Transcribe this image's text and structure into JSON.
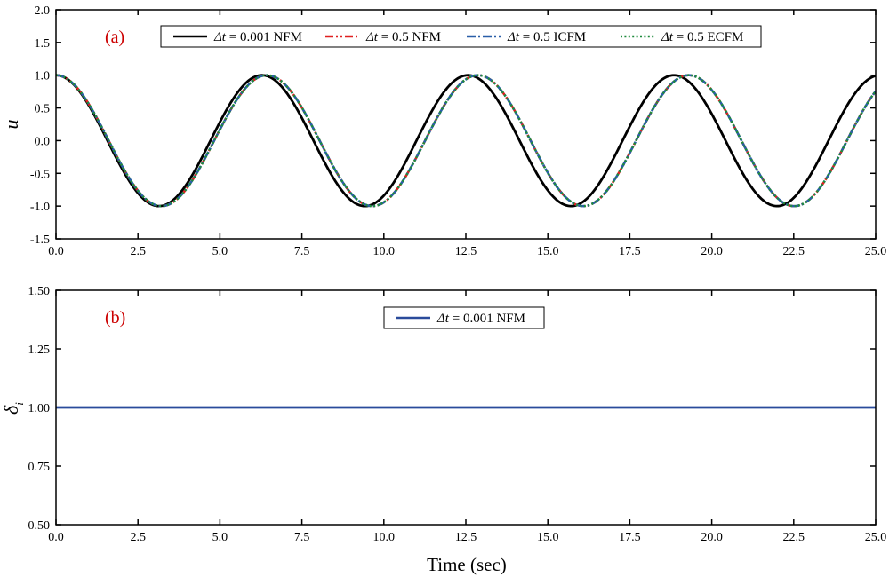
{
  "xlabel": "Time  (sec)",
  "chart_data": [
    {
      "type": "line",
      "panel_label": "(a)",
      "ylabel": "u",
      "xlim": [
        0,
        25
      ],
      "ylim": [
        -1.5,
        2.0
      ],
      "x_ticks": [
        0,
        2.5,
        5,
        7.5,
        10,
        12.5,
        15,
        17.5,
        20,
        22.5,
        25
      ],
      "x_tick_labels": [
        "0.0",
        "2.5",
        "5.0",
        "7.5",
        "10.0",
        "12.5",
        "15.0",
        "17.5",
        "20.0",
        "22.5",
        "25.0"
      ],
      "y_ticks": [
        -1.5,
        -1.0,
        -0.5,
        0.0,
        0.5,
        1.0,
        1.5,
        2.0
      ],
      "y_tick_labels": [
        "-1.5",
        "-1.0",
        "-0.5",
        "0.0",
        "0.5",
        "1.0",
        "1.5",
        "2.0"
      ],
      "grid": false,
      "legend_position": "top",
      "series": [
        {
          "name": "Δt = 0.001 NFM",
          "name_italic": "Δt",
          "name_rest": " = 0.001 NFM",
          "color": "#000000",
          "style": "solid",
          "function": "cos",
          "omega": 1.0,
          "x": [
            0,
            3.14,
            6.28,
            9.42,
            12.57,
            15.71,
            18.85,
            21.99,
            25.0
          ],
          "y": [
            1,
            -1,
            1,
            -1,
            1,
            -1,
            1,
            -1,
            0.99
          ]
        },
        {
          "name": "Δt = 0.5 NFM",
          "name_italic": "Δt",
          "name_rest": " = 0.5 NFM",
          "color": "#e02020",
          "style": "dashdotdot",
          "function": "cos",
          "omega": 0.9767,
          "x": [
            0,
            3.22,
            6.43,
            9.65,
            12.87,
            16.08,
            19.3,
            22.52,
            25.0
          ],
          "y": [
            1,
            -1,
            1,
            -1,
            1,
            -1,
            1,
            -1,
            0.77
          ]
        },
        {
          "name": "Δt = 0.5 ICFM",
          "name_italic": "Δt",
          "name_rest": " = 0.5 ICFM",
          "color": "#2a5fa8",
          "style": "dashdot",
          "function": "cos",
          "omega": 0.9767,
          "x": [
            0,
            3.22,
            6.43,
            9.65,
            12.87,
            16.08,
            19.3,
            22.52,
            25.0
          ],
          "y": [
            1,
            -1,
            1,
            -1,
            1,
            -1,
            1,
            -1,
            0.77
          ]
        },
        {
          "name": "Δt = 0.5 ECFM",
          "name_italic": "Δt",
          "name_rest": " = 0.5 ECFM",
          "color": "#1e8a3c",
          "style": "dotted",
          "function": "cos",
          "omega": 0.9767,
          "x": [
            0,
            3.22,
            6.43,
            9.65,
            12.87,
            16.08,
            19.3,
            22.52,
            25.0
          ],
          "y": [
            1,
            -1,
            1,
            -1,
            1,
            -1,
            1,
            -1,
            0.77
          ]
        }
      ]
    },
    {
      "type": "line",
      "panel_label": "(b)",
      "ylabel": "δ",
      "ylabel_subscript": "i",
      "xlim": [
        0,
        25
      ],
      "ylim": [
        0.5,
        1.5
      ],
      "x_ticks": [
        0,
        2.5,
        5,
        7.5,
        10,
        12.5,
        15,
        17.5,
        20,
        22.5,
        25
      ],
      "x_tick_labels": [
        "0.0",
        "2.5",
        "5.0",
        "7.5",
        "10.0",
        "12.5",
        "15.0",
        "17.5",
        "20.0",
        "22.5",
        "25.0"
      ],
      "y_ticks": [
        0.5,
        0.75,
        1.0,
        1.25,
        1.5
      ],
      "y_tick_labels": [
        "0.50",
        "0.75",
        "1.00",
        "1.25",
        "1.50"
      ],
      "grid": false,
      "legend_position": "top",
      "series": [
        {
          "name": "Δt = 0.001 NFM",
          "name_italic": "Δt",
          "name_rest": " = 0.001 NFM",
          "color": "#2a4b9b",
          "style": "solid",
          "x": [
            0,
            25
          ],
          "y": [
            1.0,
            1.0
          ]
        }
      ]
    }
  ]
}
